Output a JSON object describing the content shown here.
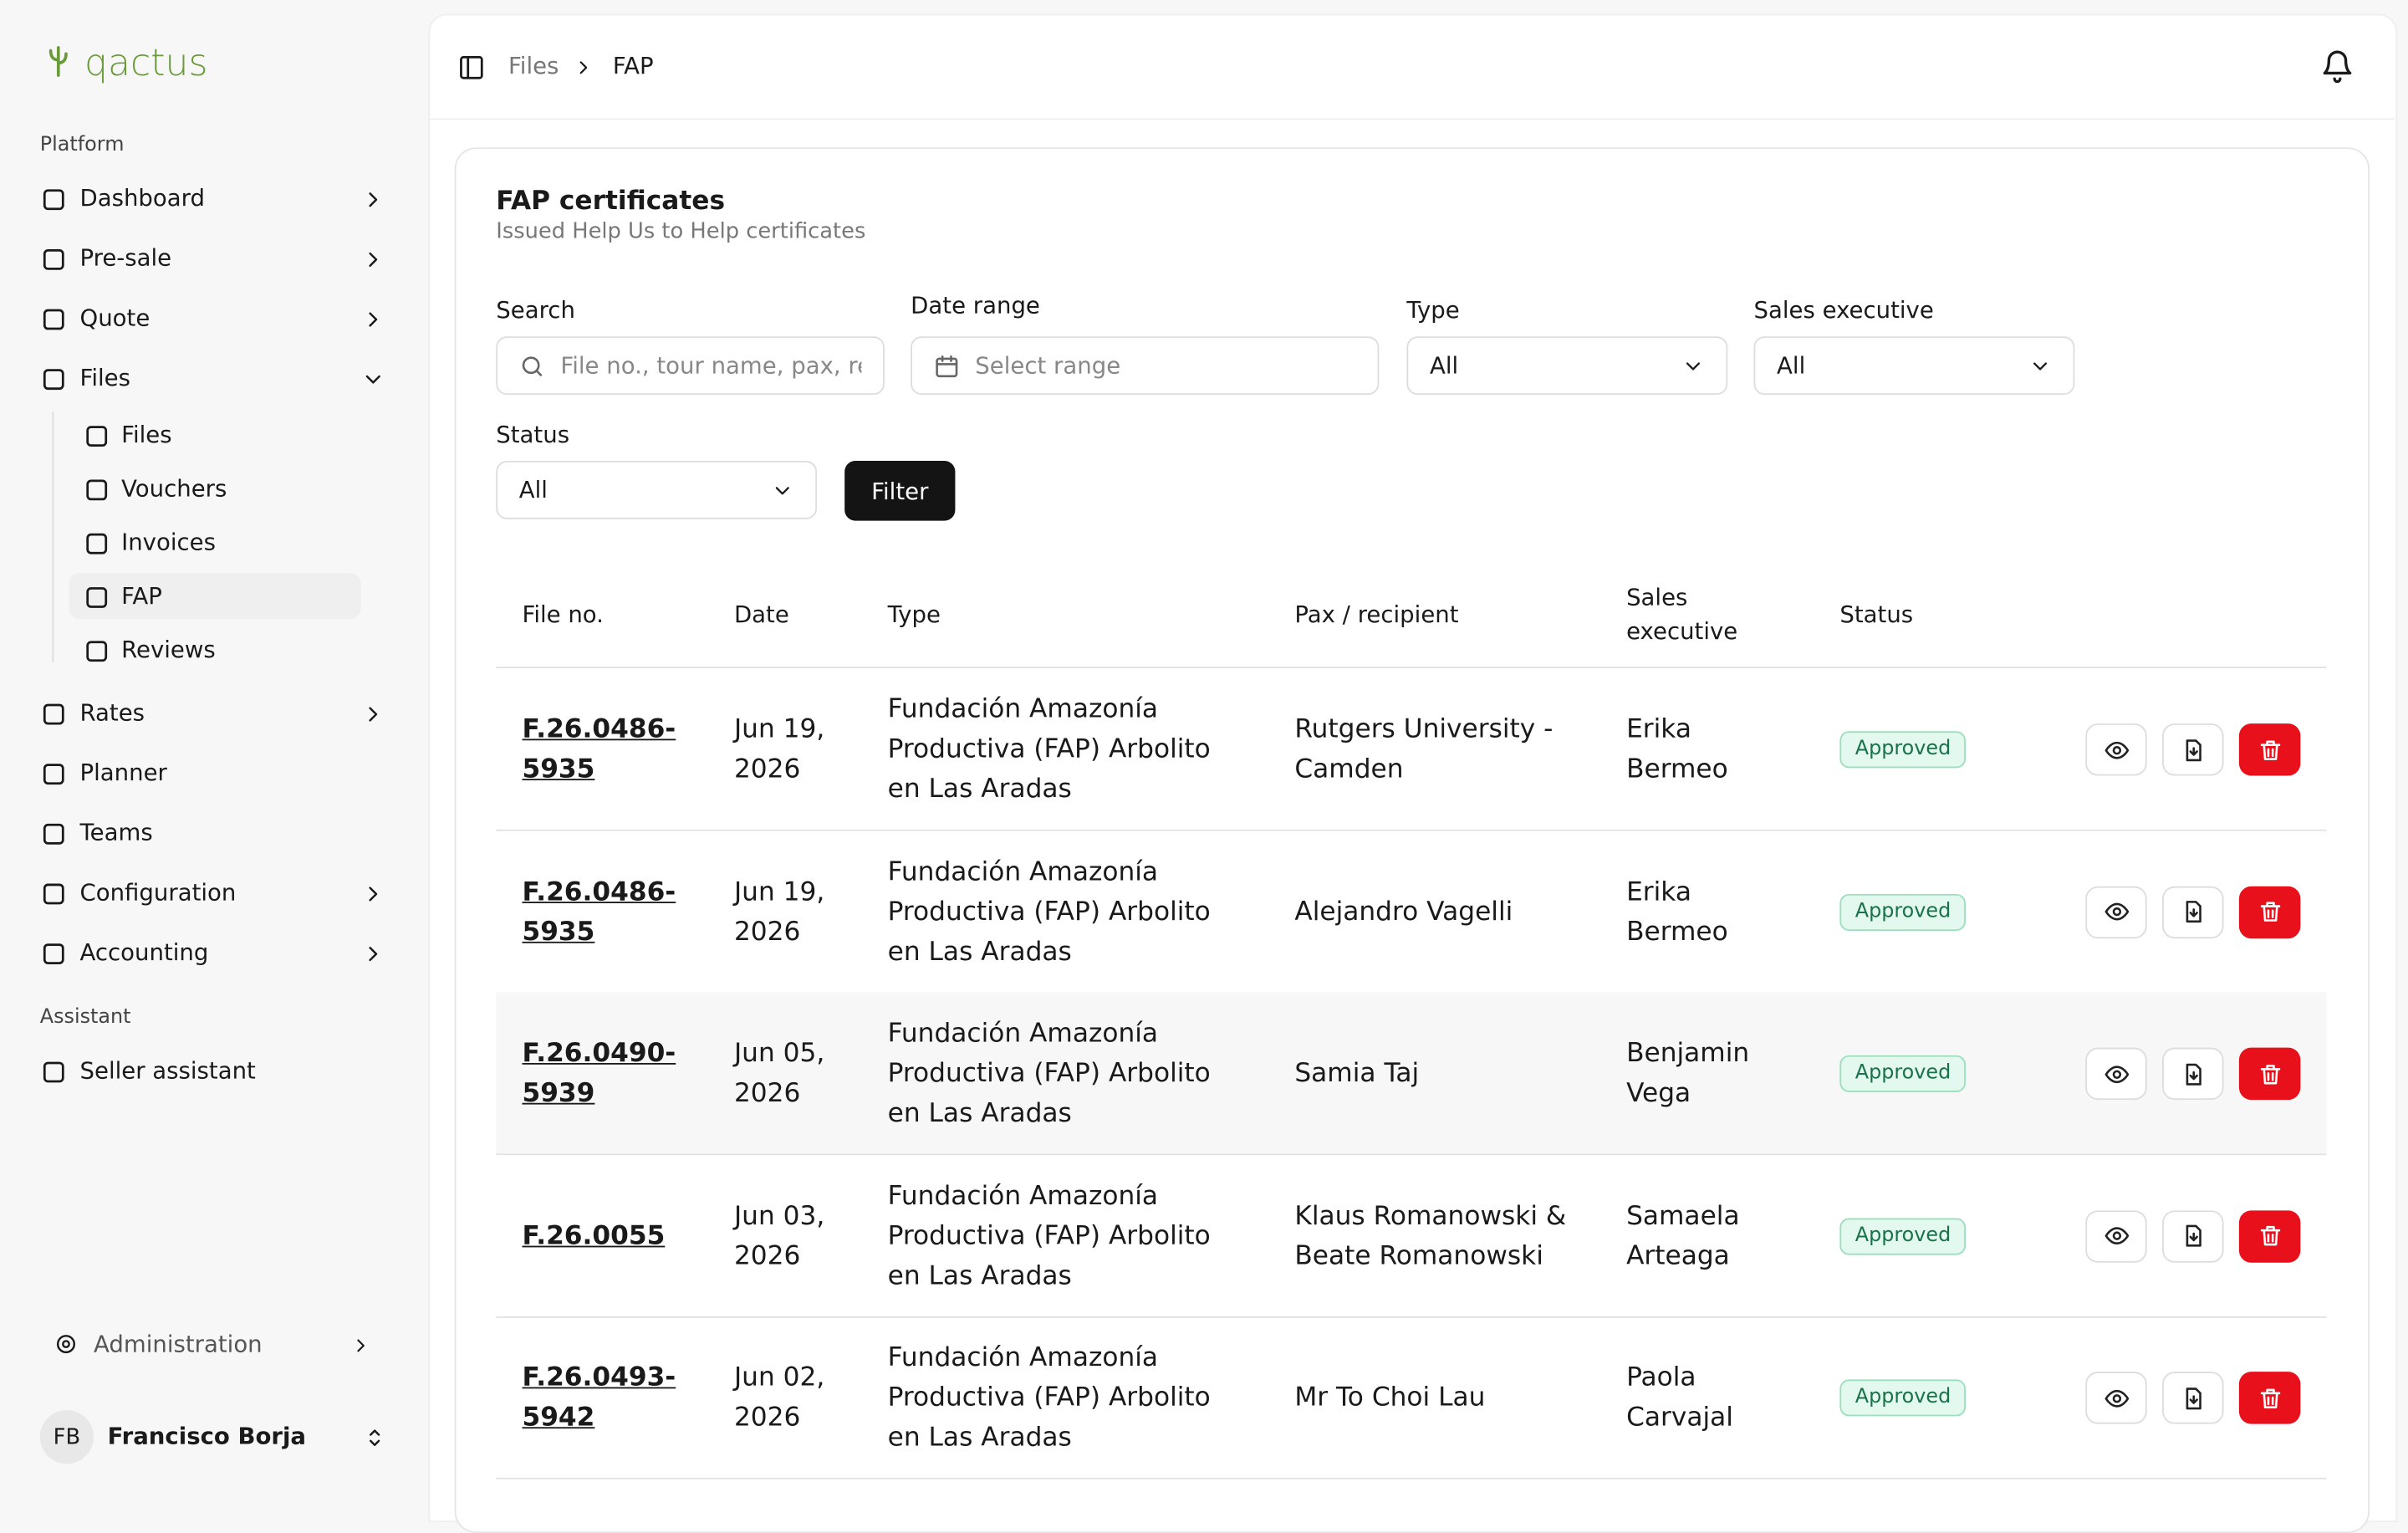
{
  "sidebar": {
    "brand": "qactus",
    "sections": [
      {
        "title": "Platform",
        "items": [
          {
            "label": "Dashboard",
            "expandable": true
          },
          {
            "label": "Pre-sale",
            "expandable": true
          },
          {
            "label": "Quote",
            "expandable": true
          },
          {
            "label": "Files",
            "expandable": true,
            "children": [
              {
                "label": "Files"
              },
              {
                "label": "Vouchers"
              },
              {
                "label": "Invoices"
              },
              {
                "label": "FAP",
                "active": true
              },
              {
                "label": "Reviews"
              }
            ]
          },
          {
            "label": "Rates",
            "expandable": true
          },
          {
            "label": "Planner"
          },
          {
            "label": "Teams"
          },
          {
            "label": "Configuration",
            "expandable": true
          },
          {
            "label": "Accounting",
            "expandable": true
          }
        ]
      },
      {
        "title": "Assistant",
        "items": [
          {
            "label": "Seller assistant"
          }
        ]
      }
    ],
    "footer": {
      "admin": "Administration",
      "user_initials": "FB",
      "user_name": "Francisco Borja"
    }
  },
  "breadcrumb": [
    "Files",
    "FAP"
  ],
  "card": {
    "title": "FAP certificates",
    "subtitle": "Issued Help Us to Help certificates"
  },
  "filters": {
    "search": {
      "label": "Search",
      "placeholder": "File no., tour name, pax, recip"
    },
    "date_range": {
      "label": "Date range",
      "placeholder": "Select range"
    },
    "type": {
      "label": "Type",
      "value": "All"
    },
    "sales_executive": {
      "label": "Sales executive",
      "value": "All"
    },
    "status": {
      "label": "Status",
      "value": "All"
    },
    "button": "Filter"
  },
  "table": {
    "columns": [
      "File no.",
      "Date",
      "Type",
      "Pax / recipient",
      "Sales executive",
      "Status"
    ],
    "rows": [
      [
        "F.26.0486-5935",
        "Jun 19, 2026",
        "Fundación Amazonía Productiva (FAP) Arbolito en Las Aradas",
        "Rutgers University - Camden",
        "Erika Bermeo",
        "Approved"
      ],
      [
        "F.26.0486-5935",
        "Jun 19, 2026",
        "Fundación Amazonía Productiva (FAP) Arbolito en Las Aradas",
        "Alejandro Vagelli",
        "Erika Bermeo",
        "Approved"
      ],
      [
        "F.26.0490-5939",
        "Jun 05, 2026",
        "Fundación Amazonía Productiva (FAP) Arbolito en Las Aradas",
        "Samia Taj",
        "Benjamin Vega",
        "Approved"
      ],
      [
        "F.26.0055",
        "Jun 03, 2026",
        "Fundación Amazonía Productiva (FAP) Arbolito en Las Aradas",
        "Klaus Romanowski & Beate Romanowski",
        "Samaela Arteaga",
        "Approved"
      ],
      [
        "F.26.0493-5942",
        "Jun 02, 2026",
        "Fundación Amazonía Productiva (FAP) Arbolito en Las Aradas",
        "Mr To Choi Lau",
        "Paola Carvajal",
        "Approved"
      ]
    ]
  }
}
